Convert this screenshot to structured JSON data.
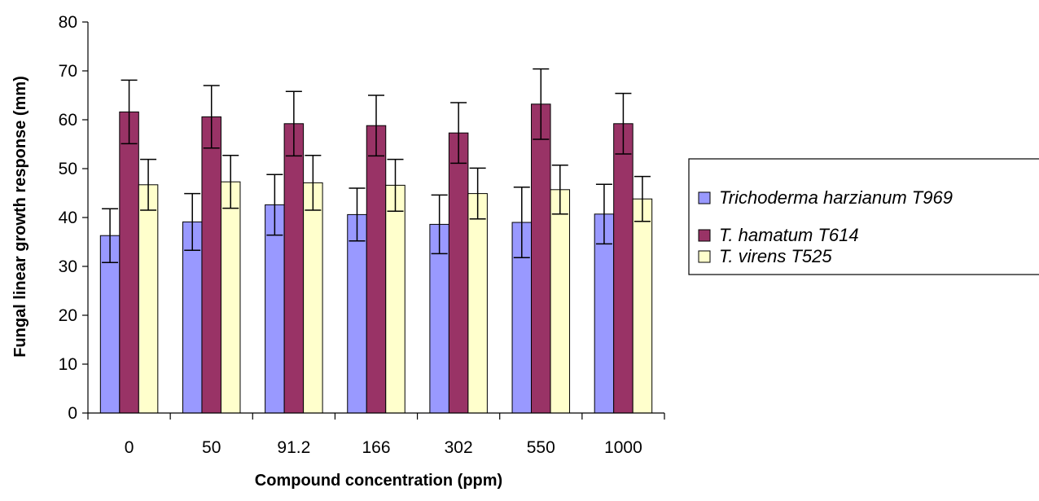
{
  "chart_data": {
    "type": "bar",
    "xlabel": "Compound concentration (ppm)",
    "ylabel": "Fungal linear growth response (mm)",
    "ylim": [
      0,
      80
    ],
    "yticks": [
      0,
      10,
      20,
      30,
      40,
      50,
      60,
      70,
      80
    ],
    "grid": false,
    "legend_position": "right",
    "categories": [
      "0",
      "50",
      "91.2",
      "166",
      "302",
      "550",
      "1000"
    ],
    "series": [
      {
        "name": "Trichoderma harzianum T969",
        "color": "#9999ff",
        "values": [
          36.3,
          39.1,
          42.6,
          40.6,
          38.6,
          39.0,
          40.7
        ],
        "errors": [
          5.5,
          5.8,
          6.2,
          5.4,
          6.0,
          7.2,
          6.1
        ]
      },
      {
        "name": "T. hamatum T614",
        "color": "#993366",
        "values": [
          61.6,
          60.6,
          59.2,
          58.8,
          57.3,
          63.2,
          59.2
        ],
        "errors": [
          6.5,
          6.4,
          6.6,
          6.2,
          6.2,
          7.2,
          6.2
        ]
      },
      {
        "name": "T. virens T525",
        "color": "#ffffcc",
        "values": [
          46.7,
          47.3,
          47.1,
          46.6,
          44.9,
          45.7,
          43.8
        ],
        "errors": [
          5.2,
          5.4,
          5.6,
          5.3,
          5.2,
          5.0,
          4.6
        ]
      }
    ]
  }
}
